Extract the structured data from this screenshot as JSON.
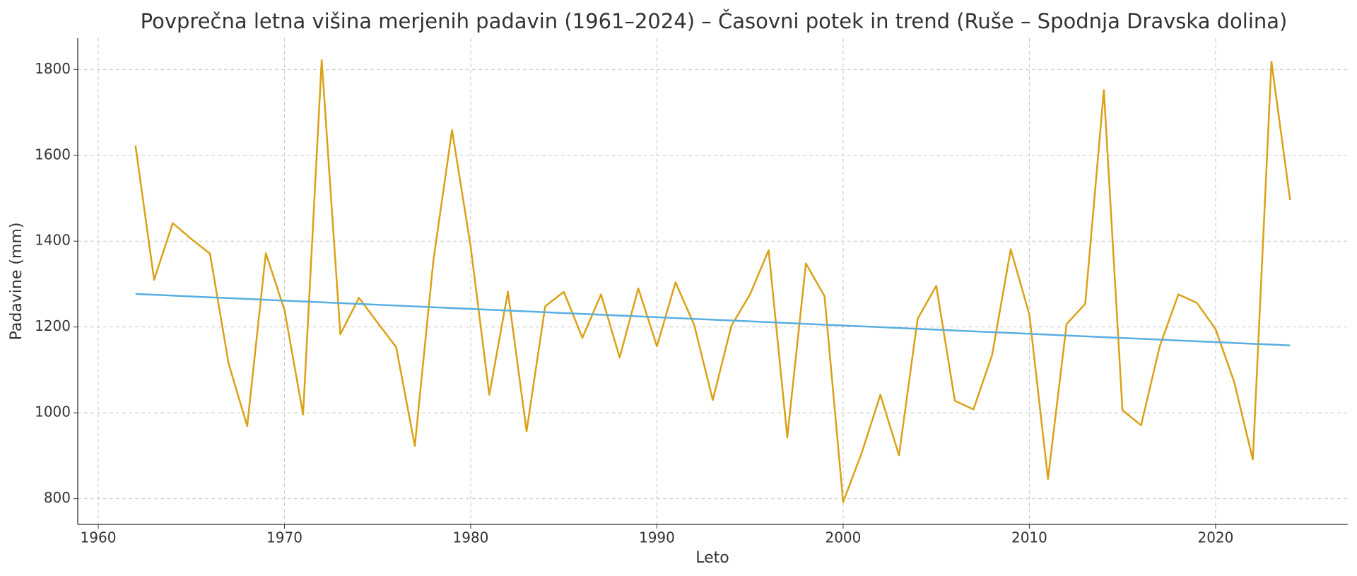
{
  "chart_data": {
    "type": "line",
    "title": "Povprečna letna višina merjenih padavin (1961–2024) – Časovni potek in trend (Ruše – Spodnja Dravska dolina)",
    "x_label": "Leto",
    "y_label": "Padavine (mm)",
    "series": [
      {
        "color": "#daa116",
        "x": [
          1962,
          1963,
          1964,
          1965,
          1966,
          1967,
          1968,
          1969,
          1970,
          1971,
          1972,
          1973,
          1974,
          1975,
          1976,
          1977,
          1978,
          1979,
          1980,
          1981,
          1982,
          1983,
          1984,
          1985,
          1986,
          1987,
          1988,
          1989,
          1990,
          1991,
          1992,
          1993,
          1994,
          1995,
          1996,
          1997,
          1998,
          1999,
          2000,
          2001,
          2002,
          2003,
          2004,
          2005,
          2006,
          2007,
          2008,
          2009,
          2010,
          2011,
          2012,
          2013,
          2014,
          2015,
          2016,
          2017,
          2018,
          2019,
          2020,
          2021,
          2022,
          2023,
          2024
        ],
        "values": [
          1623,
          1310,
          1442,
          1405,
          1371,
          1115,
          969,
          1372,
          1240,
          996,
          1822,
          1183,
          1268,
          1210,
          1153,
          923,
          1356,
          1659,
          1387,
          1042,
          1282,
          957,
          1248,
          1282,
          1175,
          1276,
          1129,
          1290,
          1155,
          1304,
          1205,
          1030,
          1203,
          1276,
          1379,
          943,
          1348,
          1272,
          792,
          907,
          1042,
          901,
          1219,
          1296,
          1028,
          1008,
          1135,
          1381,
          1229,
          846,
          1207,
          1254,
          1752,
          1006,
          971,
          1155,
          1276,
          1256,
          1195,
          1072,
          891,
          1818,
          1496
        ]
      },
      {
        "color": "#5aaee0",
        "x": [
          1962,
          2024
        ],
        "values": [
          1277,
          1157
        ]
      }
    ],
    "xlim": [
      1958.9,
      2027.1
    ],
    "xticks": [
      1960,
      1970,
      1980,
      1990,
      2000,
      2010,
      2020
    ],
    "ylim": [
      740,
      1873
    ],
    "yticks": [
      800,
      1000,
      1200,
      1400,
      1600,
      1800
    ],
    "grid": true
  }
}
